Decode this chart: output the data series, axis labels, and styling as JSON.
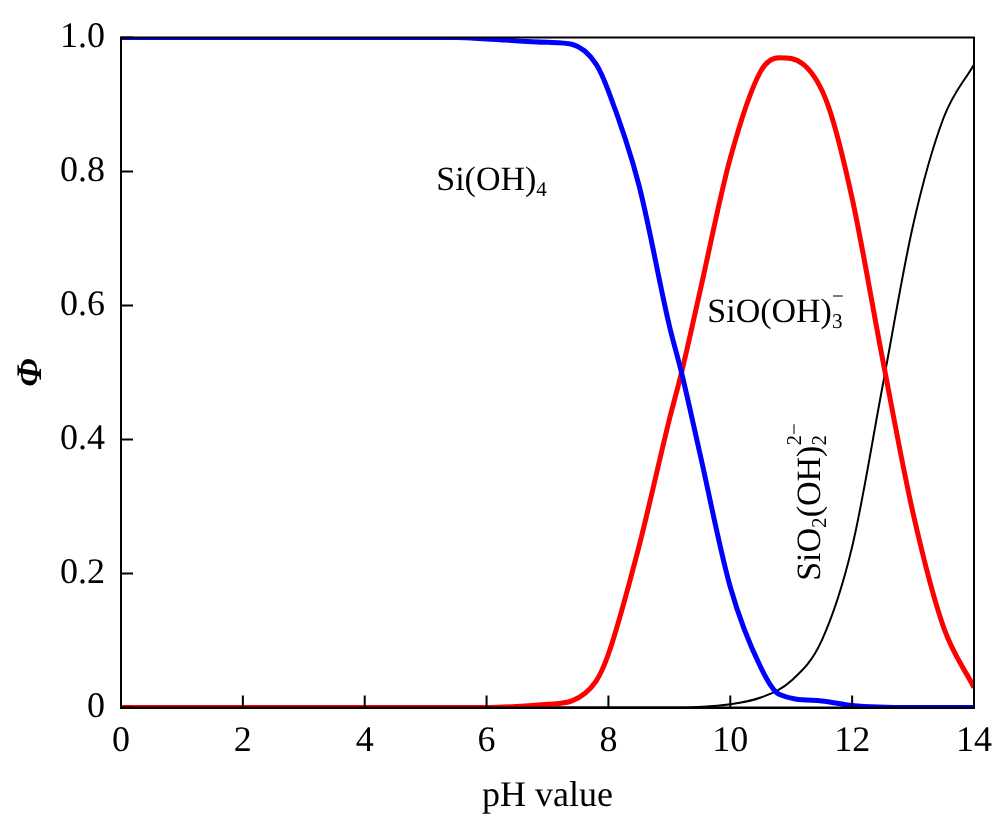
{
  "chart_data": {
    "type": "line",
    "xlabel": "pH value",
    "ylabel": "Φ",
    "xlim": [
      0,
      14
    ],
    "xticks": [
      0,
      2,
      4,
      6,
      8,
      10,
      12,
      14
    ],
    "ylim": [
      0,
      1
    ],
    "yticks": [
      {
        "value": 0,
        "label": "0"
      },
      {
        "value": 0.2,
        "label": "0.2"
      },
      {
        "value": 0.4,
        "label": "0.4"
      },
      {
        "value": 0.6,
        "label": "0.6"
      },
      {
        "value": 0.8,
        "label": "0.8"
      },
      {
        "value": 1,
        "label": "1.0"
      }
    ],
    "grid": false,
    "legend": false,
    "marker": "none",
    "line_style": "solid",
    "series": [
      {
        "name": "Si(OH)$_{4}$",
        "color": "#0000ff",
        "x": [
          0,
          5.5,
          6,
          7,
          7.4,
          7.8,
          8,
          8.5,
          9,
          9.2,
          9.5,
          10,
          10.5,
          10.8,
          11.5,
          12,
          13,
          14
        ],
        "values": [
          1,
          1,
          0.998,
          0.993,
          0.99,
          0.96,
          0.92,
          0.78,
          0.57,
          0.5,
          0.38,
          0.18,
          0.06,
          0.02,
          0.01,
          0.003,
          0,
          0
        ]
      },
      {
        "name": "SiO(OH)$_{3}$$^{−}$",
        "color": "#ff0000",
        "x": [
          0,
          6,
          7,
          7.4,
          7.8,
          8,
          8.5,
          9,
          9.2,
          9.5,
          10,
          10.5,
          10.8,
          11.2,
          11.6,
          12,
          12.5,
          13,
          13.5,
          14
        ],
        "values": [
          0,
          0,
          0.005,
          0.01,
          0.04,
          0.08,
          0.24,
          0.43,
          0.5,
          0.62,
          0.82,
          0.95,
          0.97,
          0.96,
          0.9,
          0.76,
          0.52,
          0.29,
          0.12,
          0.03
        ]
      },
      {
        "name": "SiO$_{2}$(OH)$_{2}$$^{2−}$",
        "color": "#000000",
        "x": [
          0,
          9,
          10,
          10.5,
          11,
          11.5,
          12,
          12.5,
          13,
          13.5,
          14
        ],
        "values": [
          0,
          0,
          0.005,
          0.015,
          0.04,
          0.1,
          0.24,
          0.48,
          0.72,
          0.88,
          0.96
        ]
      }
    ]
  }
}
